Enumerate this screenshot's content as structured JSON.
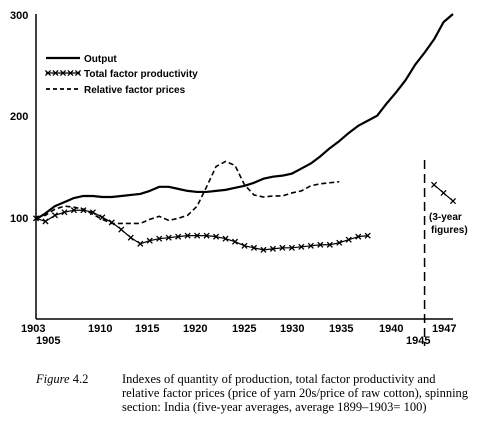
{
  "chart_data": {
    "type": "line",
    "xlim": [
      1903,
      1947
    ],
    "ylim": [
      0,
      300
    ],
    "y_ticks": [
      "100",
      "200",
      "300"
    ],
    "x_ticks_top": [
      "1903",
      "1910",
      "1915",
      "1920",
      "1925",
      "1930",
      "1935",
      "1940",
      "1947"
    ],
    "x_ticks_bottom": [
      "1905",
      "1945"
    ],
    "legend": {
      "placement": "top-left",
      "items": [
        "Output",
        "Total factor productivity",
        "Relative factor prices"
      ]
    },
    "series": [
      {
        "name": "Output",
        "style": "solid",
        "x": [
          1903,
          1904,
          1905,
          1906,
          1907,
          1908,
          1909,
          1910,
          1911,
          1912,
          1913,
          1914,
          1915,
          1916,
          1917,
          1918,
          1919,
          1920,
          1921,
          1922,
          1923,
          1924,
          1925,
          1926,
          1927,
          1928,
          1929,
          1930,
          1931,
          1932,
          1933,
          1934,
          1935,
          1936,
          1937,
          1938,
          1939,
          1940,
          1941,
          1942,
          1943,
          1944,
          1945,
          1946,
          1947
        ],
        "y": [
          98,
          104,
          111,
          115,
          119,
          121,
          121,
          120,
          120,
          121,
          122,
          123,
          126,
          130,
          130,
          128,
          126,
          125,
          125,
          126,
          127,
          129,
          131,
          134,
          138,
          140,
          141,
          143,
          148,
          153,
          160,
          168,
          175,
          183,
          190,
          195,
          200,
          212,
          223,
          235,
          250,
          262,
          275,
          292,
          300
        ]
      },
      {
        "name": "Total factor productivity",
        "style": "crosses",
        "x": [
          1903,
          1904,
          1905,
          1906,
          1907,
          1908,
          1909,
          1910,
          1911,
          1912,
          1913,
          1914,
          1915,
          1916,
          1917,
          1918,
          1919,
          1920,
          1921,
          1922,
          1923,
          1924,
          1925,
          1926,
          1927,
          1928,
          1929,
          1930,
          1931,
          1932,
          1933,
          1934,
          1935,
          1936,
          1937,
          1938
        ],
        "y": [
          99,
          96,
          102,
          105,
          107,
          107,
          105,
          100,
          95,
          88,
          80,
          74,
          77,
          79,
          80,
          81,
          82,
          82,
          82,
          81,
          79,
          76,
          72,
          70,
          68,
          69,
          70,
          70,
          71,
          72,
          73,
          73,
          75,
          78,
          81,
          82
        ]
      },
      {
        "name": "Relative factor prices",
        "style": "dashed",
        "x": [
          1903,
          1904,
          1905,
          1906,
          1907,
          1908,
          1909,
          1910,
          1911,
          1912,
          1913,
          1914,
          1915,
          1916,
          1917,
          1918,
          1919,
          1920,
          1921,
          1922,
          1923,
          1924,
          1925,
          1926,
          1927,
          1928,
          1929,
          1930,
          1931,
          1932,
          1933,
          1934,
          1935
        ],
        "y": [
          100,
          102,
          108,
          111,
          110,
          108,
          103,
          98,
          94,
          94,
          94,
          94,
          98,
          101,
          97,
          99,
          102,
          111,
          130,
          150,
          155,
          151,
          132,
          122,
          120,
          121,
          121,
          124,
          126,
          131,
          133,
          134,
          135
        ]
      },
      {
        "name": "(3-year figures)",
        "style": "crosses",
        "x": [
          1945,
          1946,
          1947
        ],
        "y": [
          132,
          124,
          116
        ]
      }
    ],
    "annotations": [
      "(3-year",
      "figures)"
    ],
    "break_line_x": 1944
  },
  "caption": {
    "label_prefix": "Figure",
    "label_number": " 4.2",
    "text": "Indexes of quantity of production, total factor productivity and relative factor prices (price of yarn 20s/price of raw cotton), spinning section: India (five-year averages, average 1899–1903= 100)"
  }
}
